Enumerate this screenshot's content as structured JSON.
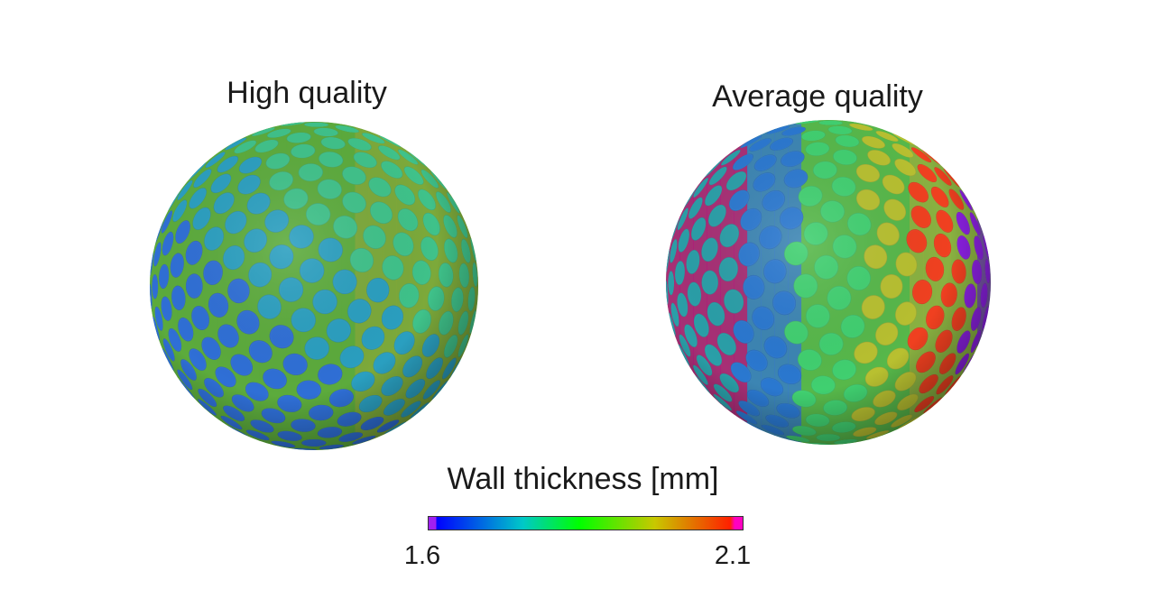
{
  "panels": [
    {
      "title": "High quality",
      "style": "uniform"
    },
    {
      "title": "Average quality",
      "style": "varied"
    }
  ],
  "colorbar": {
    "title": "Wall thickness [mm]",
    "min_label": "1.6",
    "max_label": "2.1",
    "stops": [
      "#a020f0",
      "#0000ff",
      "#00c8c8",
      "#00ff00",
      "#c8c800",
      "#ff2000",
      "#ff00c0"
    ]
  }
}
